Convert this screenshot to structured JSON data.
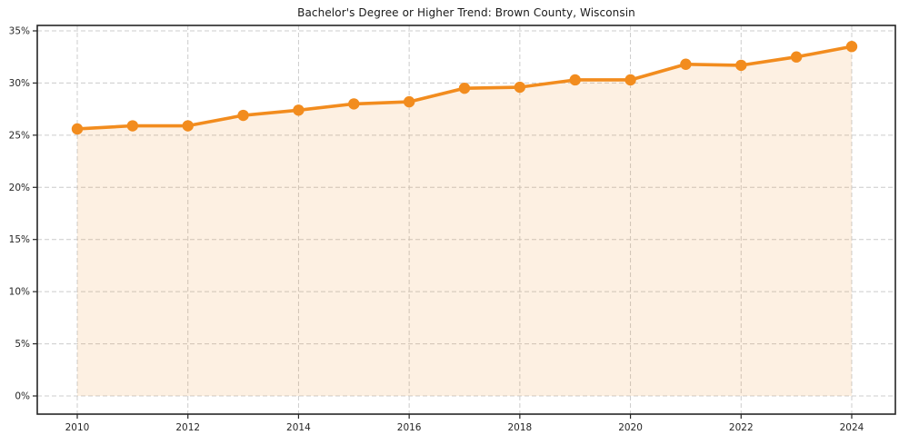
{
  "page": {
    "background": "#ffffff"
  },
  "chart_data": {
    "type": "area",
    "title": "Bachelor's Degree or Higher Trend: Brown County, Wisconsin",
    "x": [
      2010,
      2011,
      2012,
      2013,
      2014,
      2015,
      2016,
      2017,
      2018,
      2019,
      2020,
      2021,
      2022,
      2023,
      2024
    ],
    "values": [
      25.6,
      25.9,
      25.9,
      26.9,
      27.4,
      28.0,
      28.2,
      29.5,
      29.6,
      30.3,
      30.3,
      31.8,
      31.7,
      32.5,
      33.5
    ],
    "xlabel": "",
    "ylabel": "",
    "ylim": [
      0,
      35
    ],
    "xlim": [
      2010,
      2024
    ],
    "yticks": [
      0,
      5,
      10,
      15,
      20,
      25,
      30,
      35
    ],
    "ytick_labels": [
      "0%",
      "5%",
      "10%",
      "15%",
      "20%",
      "25%",
      "30%",
      "35%"
    ],
    "xticks": [
      2010,
      2012,
      2014,
      2016,
      2018,
      2020,
      2022,
      2024
    ],
    "xtick_labels": [
      "2010",
      "2012",
      "2014",
      "2016",
      "2018",
      "2020",
      "2022",
      "2024"
    ],
    "grid": true,
    "grid_style": "dashed",
    "legend_position": "none",
    "line_color": "#f28c1e",
    "marker_color": "#f28c1e",
    "marker_shape": "circle",
    "fill_color": "#f28c1e",
    "fill_opacity": 0.13,
    "grid_color": "#cccccc",
    "spine_color": "#262626",
    "tick_label_color": "#262626",
    "title_color": "#1a1a1a"
  }
}
